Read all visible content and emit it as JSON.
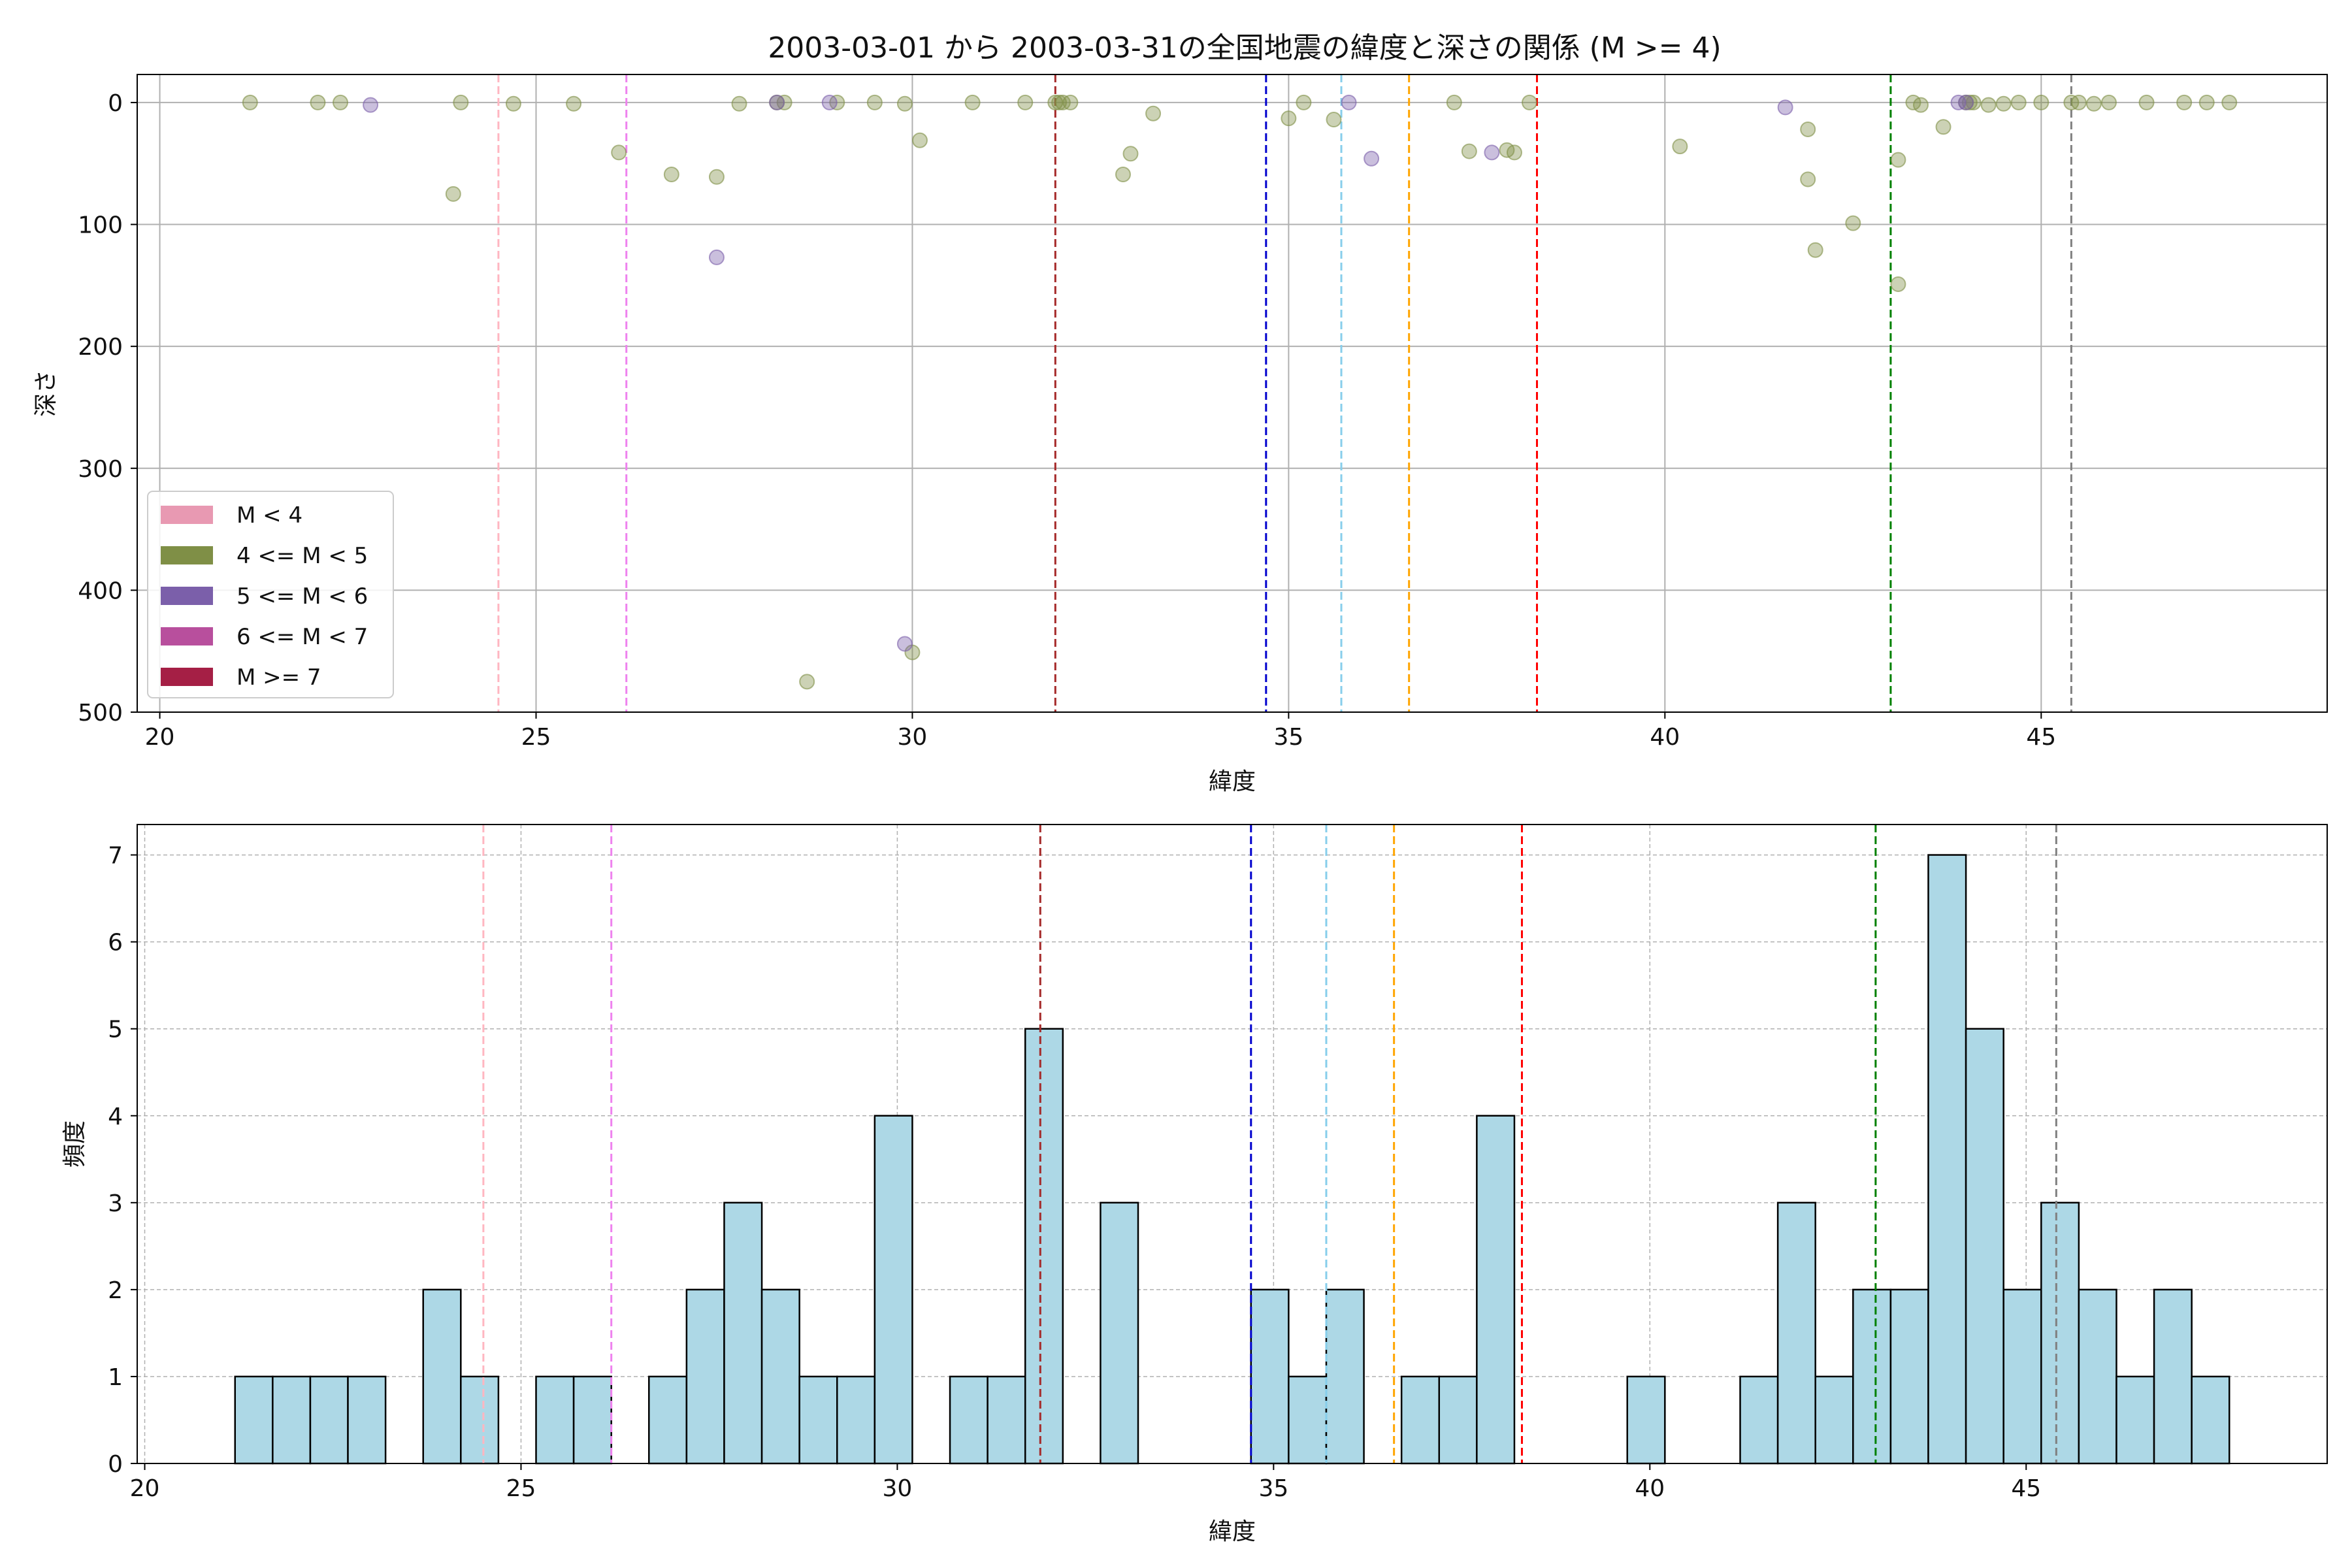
{
  "chart_data": [
    {
      "type": "scatter",
      "title": "2003-03-01 から 2003-03-31の全国地震の緯度と深さの関係 (M >= 4)",
      "xlabel": "緯度",
      "ylabel": "深さ",
      "xlim": [
        19.7,
        48.8
      ],
      "ylim": [
        500,
        -23
      ],
      "y_inverted": true,
      "xticks": [
        20,
        25,
        30,
        35,
        40,
        45
      ],
      "yticks": [
        0,
        100,
        200,
        300,
        400,
        500
      ],
      "grid": true,
      "legend_position": "lower-left",
      "legend": [
        {
          "label": "M < 4",
          "color": "#e899b2"
        },
        {
          "label": "4 <= M < 5",
          "color": "#7f8f46"
        },
        {
          "label": "5 <= M < 6",
          "color": "#7b5faa"
        },
        {
          "label": "6 <= M < 7",
          "color": "#b84f9d"
        },
        {
          "label": "M >= 7",
          "color": "#a51f45"
        }
      ],
      "series": [
        {
          "legend_index": 1,
          "color": "#7f8f46",
          "points": [
            [
              21.2,
              0
            ],
            [
              22.1,
              0
            ],
            [
              22.4,
              0
            ],
            [
              23.9,
              75
            ],
            [
              24.0,
              0
            ],
            [
              24.7,
              1
            ],
            [
              25.5,
              1
            ],
            [
              26.1,
              41
            ],
            [
              26.8,
              59
            ],
            [
              27.4,
              61
            ],
            [
              27.7,
              1
            ],
            [
              28.2,
              0
            ],
            [
              28.3,
              0
            ],
            [
              28.6,
              475
            ],
            [
              29.0,
              0
            ],
            [
              29.5,
              0
            ],
            [
              29.9,
              1
            ],
            [
              30.0,
              451
            ],
            [
              30.1,
              31
            ],
            [
              30.8,
              0
            ],
            [
              31.5,
              0
            ],
            [
              31.9,
              0
            ],
            [
              31.95,
              0
            ],
            [
              32.0,
              0
            ],
            [
              32.1,
              0
            ],
            [
              32.8,
              59
            ],
            [
              32.9,
              42
            ],
            [
              33.2,
              9
            ],
            [
              35.0,
              13
            ],
            [
              35.2,
              0
            ],
            [
              35.6,
              14
            ],
            [
              37.2,
              0
            ],
            [
              37.4,
              40
            ],
            [
              37.9,
              39
            ],
            [
              38.0,
              41
            ],
            [
              38.2,
              0
            ],
            [
              40.2,
              36
            ],
            [
              41.9,
              22
            ],
            [
              41.9,
              63
            ],
            [
              42.0,
              121
            ],
            [
              42.5,
              99
            ],
            [
              43.1,
              149
            ],
            [
              43.1,
              47
            ],
            [
              43.3,
              0
            ],
            [
              43.4,
              2
            ],
            [
              43.7,
              20
            ],
            [
              44.0,
              0
            ],
            [
              44.05,
              0
            ],
            [
              44.1,
              0
            ],
            [
              44.3,
              2
            ],
            [
              44.5,
              1
            ],
            [
              44.7,
              0
            ],
            [
              45.0,
              0
            ],
            [
              45.4,
              0
            ],
            [
              45.5,
              0
            ],
            [
              45.7,
              1
            ],
            [
              45.9,
              0
            ],
            [
              46.4,
              0
            ],
            [
              46.9,
              0
            ],
            [
              47.2,
              0
            ],
            [
              47.5,
              0
            ]
          ]
        },
        {
          "legend_index": 2,
          "color": "#7b5faa",
          "points": [
            [
              22.8,
              2
            ],
            [
              27.4,
              127
            ],
            [
              28.2,
              0
            ],
            [
              28.9,
              0
            ],
            [
              29.9,
              444
            ],
            [
              35.8,
              0
            ],
            [
              36.1,
              46
            ],
            [
              37.7,
              41
            ],
            [
              41.6,
              4
            ],
            [
              43.9,
              0
            ],
            [
              44.0,
              0
            ]
          ]
        }
      ],
      "vlines": [
        {
          "x": 24.5,
          "color": "#ffb6c1"
        },
        {
          "x": 26.2,
          "color": "#ee82ee"
        },
        {
          "x": 31.9,
          "color": "#a52a2a"
        },
        {
          "x": 34.7,
          "color": "#0000cd"
        },
        {
          "x": 35.7,
          "color": "#87ceeb"
        },
        {
          "x": 36.6,
          "color": "#ffa500"
        },
        {
          "x": 38.3,
          "color": "#ff0000"
        },
        {
          "x": 43.0,
          "color": "#008000"
        },
        {
          "x": 45.4,
          "color": "#808080"
        }
      ]
    },
    {
      "type": "bar",
      "xlabel": "緯度",
      "ylabel": "頻度",
      "xlim": [
        19.9,
        49.0
      ],
      "ylim": [
        0,
        7.35
      ],
      "xticks": [
        20,
        25,
        30,
        35,
        40,
        45
      ],
      "yticks": [
        0,
        1,
        2,
        3,
        4,
        5,
        6,
        7
      ],
      "grid": true,
      "bar_color": "#add8e6",
      "bin_start": 21.2,
      "bin_width": 0.5,
      "values": [
        1,
        1,
        1,
        1,
        0,
        2,
        1,
        0,
        1,
        1,
        0,
        1,
        2,
        3,
        2,
        1,
        1,
        4,
        0,
        1,
        1,
        5,
        0,
        3,
        0,
        0,
        0,
        2,
        1,
        2,
        0,
        1,
        1,
        4,
        0,
        0,
        0,
        1,
        0,
        0,
        1,
        3,
        1,
        2,
        2,
        7,
        5,
        2,
        3,
        2,
        1,
        2,
        1
      ],
      "vlines": [
        {
          "x": 24.5,
          "color": "#ffb6c1"
        },
        {
          "x": 26.2,
          "color": "#ee82ee"
        },
        {
          "x": 31.9,
          "color": "#a52a2a"
        },
        {
          "x": 34.7,
          "color": "#0000cd"
        },
        {
          "x": 35.7,
          "color": "#87ceeb"
        },
        {
          "x": 36.6,
          "color": "#ffa500"
        },
        {
          "x": 38.3,
          "color": "#ff0000"
        },
        {
          "x": 43.0,
          "color": "#008000"
        },
        {
          "x": 45.4,
          "color": "#808080"
        }
      ]
    }
  ]
}
